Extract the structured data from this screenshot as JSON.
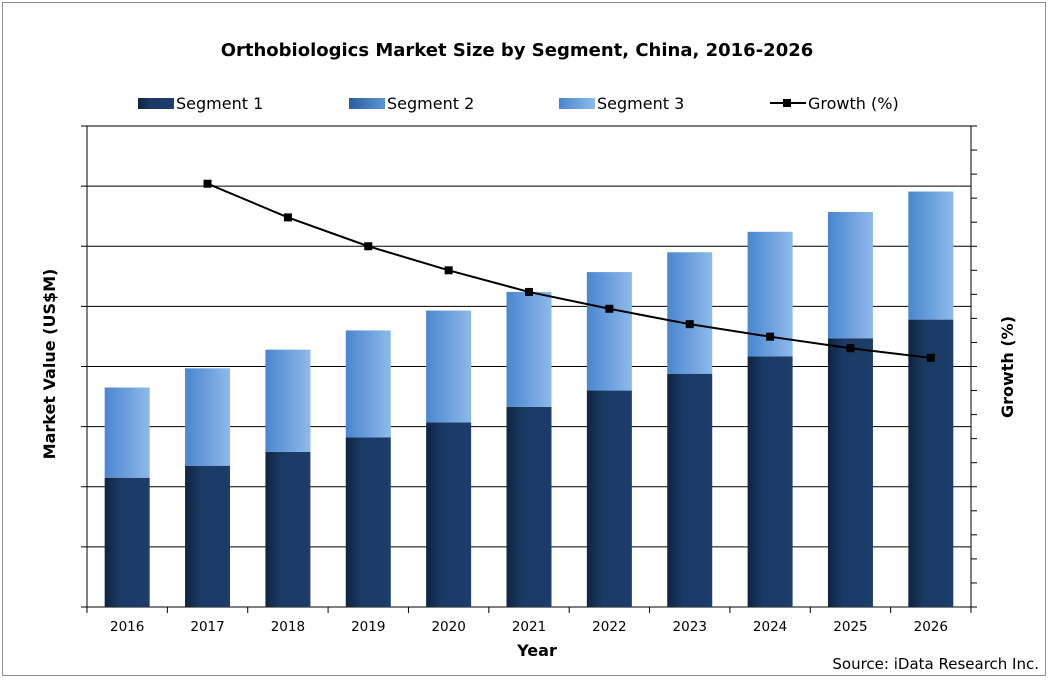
{
  "chart_data": {
    "type": "bar",
    "stacked": true,
    "title": "Orthobiologics Market Size by Segment, China, 2016-2026",
    "xlabel": "Year",
    "ylabel": "Market Value (US$M)",
    "y2label": "Growth (%)",
    "categories": [
      "2016",
      "2017",
      "2018",
      "2019",
      "2020",
      "2021",
      "2022",
      "2023",
      "2024",
      "2025",
      "2026"
    ],
    "series": [
      {
        "name": "Segment 1",
        "kind": "bar",
        "color": "#1b3a64",
        "values": [
          2.15,
          2.35,
          2.58,
          2.82,
          3.07,
          3.33,
          3.6,
          3.88,
          4.17,
          4.47,
          4.78
        ]
      },
      {
        "name": "Segment 2",
        "kind": "bar",
        "color": "#3d7cc9",
        "values": [
          0,
          0,
          0,
          0,
          0,
          0,
          0,
          0,
          0,
          0,
          0
        ]
      },
      {
        "name": "Segment 3",
        "kind": "bar",
        "color": "#7fb0e6",
        "values": [
          1.5,
          1.62,
          1.7,
          1.78,
          1.86,
          1.91,
          1.97,
          2.02,
          2.07,
          2.1,
          2.13
        ]
      },
      {
        "name": "Growth (%)",
        "kind": "line",
        "axis": "right",
        "color": "#000000",
        "values": [
          null,
          8.8,
          8.1,
          7.5,
          7.0,
          6.55,
          6.2,
          5.88,
          5.62,
          5.38,
          5.18
        ]
      }
    ],
    "ylim": [
      0,
      8
    ],
    "y2lim": [
      0,
      10
    ],
    "y_tick_count": 8,
    "y2_tick_count": 20,
    "grid": true,
    "legend_position": "top"
  },
  "source": "Source: iData Research Inc."
}
